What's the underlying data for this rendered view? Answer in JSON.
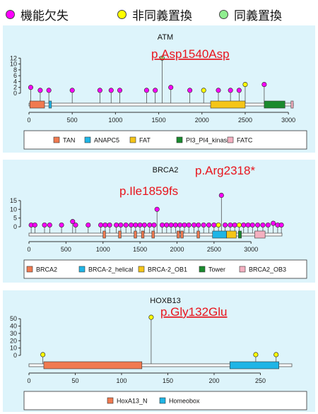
{
  "legend": {
    "items": [
      {
        "label": "機能欠失",
        "color": "#ff00ff"
      },
      {
        "label": "非同義置換",
        "color": "#ffff00"
      },
      {
        "label": "同義置換",
        "color": "#90ee90"
      }
    ]
  },
  "chart_data": [
    {
      "type": "lollipop",
      "title": "ATM",
      "annotation": "p.Asp1540Asp",
      "annotation_x": 1540,
      "xlim": [
        0,
        3056
      ],
      "xticks": [
        0,
        500,
        1000,
        1500,
        2000,
        2500,
        3000
      ],
      "ylim": [
        0,
        14
      ],
      "yticks": [
        0,
        2,
        4,
        6,
        8,
        10,
        12
      ],
      "grid": false,
      "points": [
        {
          "x": 20,
          "y": 2,
          "type": "lof"
        },
        {
          "x": 130,
          "y": 1,
          "type": "lof"
        },
        {
          "x": 230,
          "y": 1,
          "type": "lof"
        },
        {
          "x": 500,
          "y": 1,
          "type": "lof"
        },
        {
          "x": 820,
          "y": 1,
          "type": "lof"
        },
        {
          "x": 950,
          "y": 1,
          "type": "lof"
        },
        {
          "x": 1050,
          "y": 1,
          "type": "lof"
        },
        {
          "x": 1360,
          "y": 1,
          "type": "lof"
        },
        {
          "x": 1460,
          "y": 1,
          "type": "lof"
        },
        {
          "x": 1540,
          "y": 12,
          "type": "synonymous"
        },
        {
          "x": 1640,
          "y": 2,
          "type": "lof"
        },
        {
          "x": 1860,
          "y": 1,
          "type": "lof"
        },
        {
          "x": 2020,
          "y": 1,
          "type": "missense"
        },
        {
          "x": 2190,
          "y": 1,
          "type": "lof"
        },
        {
          "x": 2330,
          "y": 1,
          "type": "lof"
        },
        {
          "x": 2430,
          "y": 1,
          "type": "lof"
        },
        {
          "x": 2500,
          "y": 3,
          "type": "missense"
        },
        {
          "x": 2720,
          "y": 3,
          "type": "lof"
        }
      ],
      "domains": [
        {
          "name": "TAN",
          "start": 10,
          "end": 180,
          "color": "#f07a50"
        },
        {
          "name": "ANAPC5",
          "start": 230,
          "end": 260,
          "color": "#1fb5e6"
        },
        {
          "name": "FAT",
          "start": 2100,
          "end": 2500,
          "color": "#f5c518"
        },
        {
          "name": "PI3_PI4_kinase",
          "start": 2720,
          "end": 2960,
          "color": "#1a8a2e"
        },
        {
          "name": "FATC",
          "start": 3030,
          "end": 3056,
          "color": "#f4b0c0"
        }
      ]
    },
    {
      "type": "lollipop",
      "title": "BRCA2",
      "annotations": [
        {
          "label": "p.Arg2318*",
          "x": 2600
        },
        {
          "label": "p.Ile1859fs",
          "x": 1730
        }
      ],
      "xlim": [
        0,
        3418
      ],
      "xticks": [
        0,
        500,
        1000,
        1500,
        2000,
        2500,
        3000
      ],
      "ylim": [
        0,
        19
      ],
      "yticks": [
        0,
        5,
        10,
        15
      ],
      "grid": false,
      "points": [
        {
          "x": 30,
          "y": 1,
          "type": "lof"
        },
        {
          "x": 80,
          "y": 1,
          "type": "lof"
        },
        {
          "x": 210,
          "y": 1,
          "type": "lof"
        },
        {
          "x": 280,
          "y": 1,
          "type": "lof"
        },
        {
          "x": 440,
          "y": 1,
          "type": "lof"
        },
        {
          "x": 590,
          "y": 3,
          "type": "lof"
        },
        {
          "x": 630,
          "y": 1,
          "type": "lof"
        },
        {
          "x": 800,
          "y": 1,
          "type": "lof"
        },
        {
          "x": 970,
          "y": 1,
          "type": "lof"
        },
        {
          "x": 1030,
          "y": 1,
          "type": "lof"
        },
        {
          "x": 1090,
          "y": 1,
          "type": "lof"
        },
        {
          "x": 1180,
          "y": 1,
          "type": "lof"
        },
        {
          "x": 1240,
          "y": 1,
          "type": "lof"
        },
        {
          "x": 1310,
          "y": 1,
          "type": "lof"
        },
        {
          "x": 1380,
          "y": 1,
          "type": "lof"
        },
        {
          "x": 1440,
          "y": 1,
          "type": "lof"
        },
        {
          "x": 1500,
          "y": 1,
          "type": "lof"
        },
        {
          "x": 1560,
          "y": 1,
          "type": "lof"
        },
        {
          "x": 1630,
          "y": 1,
          "type": "lof"
        },
        {
          "x": 1690,
          "y": 1,
          "type": "lof"
        },
        {
          "x": 1730,
          "y": 10,
          "type": "lof"
        },
        {
          "x": 1800,
          "y": 1,
          "type": "lof"
        },
        {
          "x": 1860,
          "y": 1,
          "type": "lof"
        },
        {
          "x": 1920,
          "y": 1,
          "type": "lof"
        },
        {
          "x": 1980,
          "y": 1,
          "type": "lof"
        },
        {
          "x": 2040,
          "y": 1,
          "type": "lof"
        },
        {
          "x": 2100,
          "y": 1,
          "type": "lof"
        },
        {
          "x": 2160,
          "y": 1,
          "type": "lof"
        },
        {
          "x": 2230,
          "y": 1,
          "type": "lof"
        },
        {
          "x": 2290,
          "y": 1,
          "type": "lof"
        },
        {
          "x": 2360,
          "y": 1,
          "type": "lof"
        },
        {
          "x": 2430,
          "y": 1,
          "type": "lof"
        },
        {
          "x": 2500,
          "y": 1,
          "type": "lof"
        },
        {
          "x": 2560,
          "y": 1,
          "type": "missense"
        },
        {
          "x": 2600,
          "y": 18,
          "type": "lof"
        },
        {
          "x": 2650,
          "y": 1,
          "type": "lof"
        },
        {
          "x": 2720,
          "y": 1,
          "type": "lof"
        },
        {
          "x": 2780,
          "y": 1,
          "type": "lof"
        },
        {
          "x": 2840,
          "y": 1,
          "type": "missense"
        },
        {
          "x": 2900,
          "y": 1,
          "type": "lof"
        },
        {
          "x": 2960,
          "y": 1,
          "type": "lof"
        },
        {
          "x": 3020,
          "y": 1,
          "type": "lof"
        },
        {
          "x": 3090,
          "y": 1,
          "type": "lof"
        },
        {
          "x": 3160,
          "y": 1,
          "type": "lof"
        },
        {
          "x": 3230,
          "y": 1,
          "type": "lof"
        },
        {
          "x": 3300,
          "y": 2,
          "type": "lof"
        },
        {
          "x": 3360,
          "y": 1,
          "type": "lof"
        },
        {
          "x": 3410,
          "y": 1,
          "type": "lof"
        }
      ],
      "domains": [
        {
          "name": "BRCA2",
          "start": 1000,
          "end": 1035,
          "color": "#f07a50"
        },
        {
          "name": "BRCA2",
          "start": 1210,
          "end": 1245,
          "color": "#f07a50"
        },
        {
          "name": "BRCA2",
          "start": 1420,
          "end": 1455,
          "color": "#f07a50"
        },
        {
          "name": "BRCA2",
          "start": 1520,
          "end": 1555,
          "color": "#f07a50"
        },
        {
          "name": "BRCA2",
          "start": 1660,
          "end": 1695,
          "color": "#f07a50"
        },
        {
          "name": "BRCA2",
          "start": 2000,
          "end": 2035,
          "color": "#f07a50"
        },
        {
          "name": "BRCA2",
          "start": 2050,
          "end": 2085,
          "color": "#f07a50"
        },
        {
          "name": "BRCA2",
          "start": 2270,
          "end": 2305,
          "color": "#f07a50"
        },
        {
          "name": "BRCA-2_helical",
          "start": 2480,
          "end": 2670,
          "color": "#1fb5e6"
        },
        {
          "name": "BRCA-2_OB1",
          "start": 2670,
          "end": 2800,
          "color": "#f5c518"
        },
        {
          "name": "Tower",
          "start": 2830,
          "end": 2870,
          "color": "#1a8a2e"
        },
        {
          "name": "BRCA2_OB3",
          "start": 3050,
          "end": 3190,
          "color": "#f4b0c0"
        }
      ],
      "legend_domains": [
        {
          "name": "BRCA2",
          "color": "#f07a50"
        },
        {
          "name": "BRCA-2_helical",
          "color": "#1fb5e6"
        },
        {
          "name": "BRCA-2_OB1",
          "color": "#f5c518"
        },
        {
          "name": "Tower",
          "color": "#1a8a2e"
        },
        {
          "name": "BRCA2_OB3",
          "color": "#f4b0c0"
        }
      ]
    },
    {
      "type": "lollipop",
      "title": "HOXB13",
      "annotation": "p.Gly132Glu",
      "annotation_x": 132,
      "xlim": [
        0,
        284
      ],
      "xticks": [
        0,
        50,
        100,
        150,
        200,
        250
      ],
      "ylim": [
        0,
        55
      ],
      "yticks": [
        0,
        10,
        20,
        30,
        40,
        50
      ],
      "grid": false,
      "points": [
        {
          "x": 15,
          "y": 1,
          "type": "missense"
        },
        {
          "x": 132,
          "y": 52,
          "type": "missense"
        },
        {
          "x": 245,
          "y": 1,
          "type": "missense"
        },
        {
          "x": 267,
          "y": 1,
          "type": "missense"
        }
      ],
      "domains": [
        {
          "name": "HoxA13_N",
          "start": 16,
          "end": 122,
          "color": "#f07a50"
        },
        {
          "name": "Homeobox",
          "start": 217,
          "end": 270,
          "color": "#1fb5e6"
        }
      ]
    }
  ]
}
